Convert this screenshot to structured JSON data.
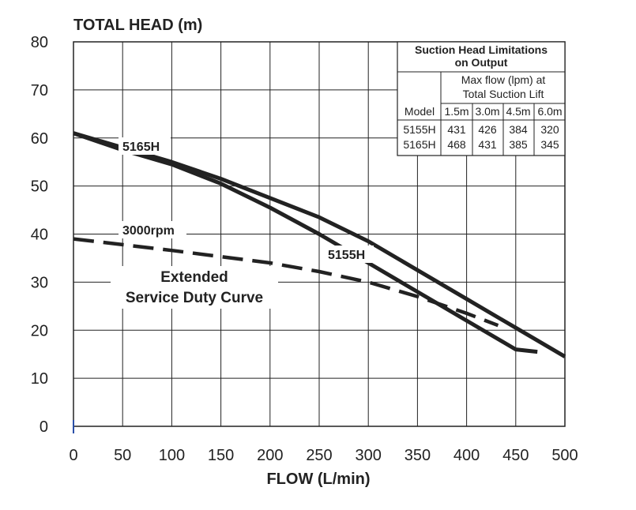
{
  "chart_data": {
    "type": "line",
    "ylabel": "TOTAL HEAD (m)",
    "xlabel": "FLOW (L/min)",
    "xlim": [
      0,
      500
    ],
    "ylim": [
      0,
      80
    ],
    "x_ticks": [
      "0",
      "50",
      "100",
      "150",
      "200",
      "250",
      "300",
      "350",
      "400",
      "450",
      "500"
    ],
    "y_ticks": [
      "0",
      "10",
      "20",
      "30",
      "40",
      "50",
      "60",
      "70",
      "80"
    ],
    "grid": true,
    "series": [
      {
        "name": "5165H",
        "style": "solid",
        "points": [
          [
            0,
            61
          ],
          [
            50,
            58
          ],
          [
            100,
            55
          ],
          [
            150,
            51.5
          ],
          [
            200,
            47.5
          ],
          [
            250,
            43.5
          ],
          [
            300,
            38.5
          ],
          [
            350,
            32.5
          ],
          [
            400,
            26.5
          ],
          [
            450,
            20.5
          ],
          [
            500,
            14.5
          ]
        ]
      },
      {
        "name": "5155H",
        "style": "solid",
        "points": [
          [
            0,
            61
          ],
          [
            50,
            57.5
          ],
          [
            100,
            54.5
          ],
          [
            150,
            50.5
          ],
          [
            200,
            45.5
          ],
          [
            250,
            40
          ],
          [
            300,
            34
          ],
          [
            350,
            28
          ],
          [
            400,
            22
          ],
          [
            450,
            16
          ],
          [
            472,
            15.5
          ]
        ]
      },
      {
        "name": "3000rpm",
        "style": "dashed",
        "points": [
          [
            0,
            39
          ],
          [
            50,
            37.8
          ],
          [
            100,
            36.6
          ],
          [
            150,
            35.3
          ],
          [
            200,
            34
          ],
          [
            250,
            32.2
          ],
          [
            300,
            30
          ],
          [
            350,
            27
          ],
          [
            400,
            23.5
          ],
          [
            432,
            21
          ]
        ]
      }
    ],
    "annotations": {
      "label_5165": "5165H",
      "label_5155": "5155H",
      "label_3000": "3000rpm",
      "extended_line1": "Extended",
      "extended_line2": "Service Duty Curve"
    }
  },
  "table": {
    "title_line1": "Suction Head Limitations",
    "title_line2": "on Output",
    "header_line1": "Max flow (lpm) at",
    "header_line2": "Total Suction Lift",
    "columns": [
      "Model",
      "1.5m",
      "3.0m",
      "4.5m",
      "6.0m"
    ],
    "rows": [
      [
        "5155H",
        "431",
        "426",
        "384",
        "320"
      ],
      [
        "5165H",
        "468",
        "431",
        "385",
        "345"
      ]
    ]
  }
}
